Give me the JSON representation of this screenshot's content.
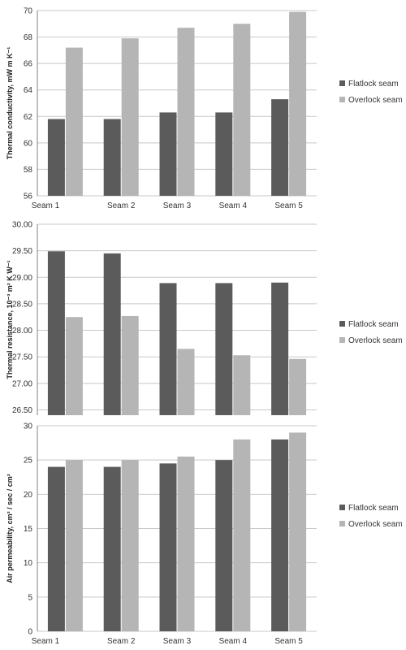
{
  "colors": {
    "flatlock": "#5b5b5b",
    "overlock": "#b5b5b5",
    "grid": "#c8c8c8"
  },
  "chart_data": [
    {
      "type": "bar",
      "ylabel": "Thermal conductivity,  mW m K⁻¹",
      "categories": [
        "Seam 1",
        "Seam 2",
        "Seam 3",
        "Seam 4",
        "Seam 5"
      ],
      "series": [
        {
          "name": "Flatlock seam",
          "values": [
            61.8,
            61.8,
            62.3,
            62.3,
            63.3
          ]
        },
        {
          "name": "Overlock seam",
          "values": [
            67.2,
            67.9,
            68.7,
            69.0,
            69.9
          ]
        }
      ],
      "ylim": [
        56,
        70
      ],
      "yticks": [
        "56",
        "58",
        "60",
        "62",
        "64",
        "66",
        "68",
        "70"
      ],
      "grid": true,
      "legend": "right"
    },
    {
      "type": "bar",
      "ylabel": "Thermal resistance, 10⁻³ m² K W⁻¹",
      "categories": [
        "",
        "",
        "",
        "",
        ""
      ],
      "series": [
        {
          "name": "Flatlock seam",
          "values": [
            29.49,
            29.45,
            28.89,
            28.89,
            28.9
          ]
        },
        {
          "name": "Overlock seam",
          "values": [
            28.25,
            28.27,
            27.65,
            27.53,
            27.46
          ]
        }
      ],
      "ylim": [
        26.4,
        30.0
      ],
      "yticks": [
        "26.50",
        "27.00",
        "27.50",
        "28.00",
        "28.50",
        "29.00",
        "29.50",
        "30.00"
      ],
      "grid": true,
      "legend": "right"
    },
    {
      "type": "bar",
      "ylabel": "Air permeability, cm³ / sec / cm²",
      "categories": [
        "Seam 1",
        "Seam 2",
        "Seam 3",
        "Seam 4",
        "Seam 5"
      ],
      "series": [
        {
          "name": "Flatlock seam",
          "values": [
            24.0,
            24.0,
            24.5,
            25.0,
            28.0
          ]
        },
        {
          "name": "Overlock seam",
          "values": [
            25.0,
            25.0,
            25.5,
            28.0,
            29.0
          ]
        }
      ],
      "ylim": [
        0,
        30
      ],
      "yticks": [
        "0",
        "5",
        "10",
        "15",
        "20",
        "25",
        "30"
      ],
      "grid": true,
      "legend": "right"
    }
  ]
}
